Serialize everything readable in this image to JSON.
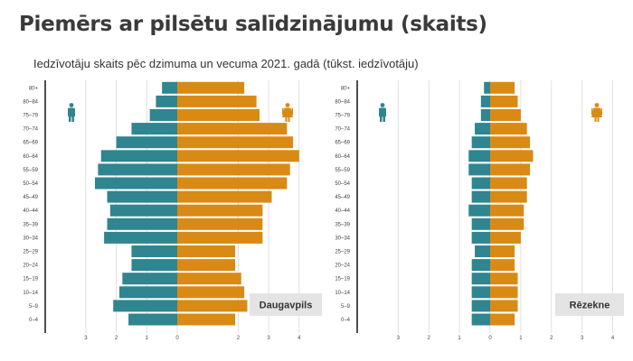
{
  "title": "Piemērs ar pilsētu salīdzinājumu (skaits)",
  "subtitle": "Iedzīvotāju skaits pēc dzimuma un vecuma 2021. gadā (tūkst. iedzīvotāju)",
  "colors": {
    "male": "#2f8590",
    "female": "#d98a14",
    "grid": "#d9d9d9",
    "axis": "#222222",
    "label_box": "#e4e4e4"
  },
  "icons": {
    "male": "male-person-icon",
    "female": "female-person-icon"
  },
  "chart_data": [
    {
      "type": "bar",
      "title": "Daugavpils",
      "orientation": "horizontal-pyramid",
      "categories": [
        "0–4",
        "5–9",
        "10–14",
        "15–19",
        "20–24",
        "25–29",
        "30–34",
        "35–39",
        "40–44",
        "45–49",
        "50–54",
        "55–59",
        "60–64",
        "65–69",
        "70–74",
        "75–79",
        "80–84",
        "80+"
      ],
      "series": [
        {
          "values": [
            1.6,
            2.1,
            1.9,
            1.8,
            1.5,
            1.5,
            2.4,
            2.3,
            2.2,
            2.3,
            2.7,
            2.6,
            2.5,
            2.0,
            1.5,
            0.9,
            0.7,
            0.5
          ]
        },
        {
          "values": [
            1.9,
            2.3,
            2.2,
            2.1,
            1.9,
            1.9,
            2.8,
            2.8,
            2.8,
            3.1,
            3.6,
            3.7,
            4.0,
            3.8,
            3.6,
            2.7,
            2.6,
            2.2
          ]
        }
      ],
      "xticks": [
        "3",
        "2",
        "1",
        "0",
        "2",
        "3",
        "4"
      ],
      "xlim": [
        -4,
        4
      ],
      "grid": true
    },
    {
      "type": "bar",
      "title": "Rēzekne",
      "orientation": "horizontal-pyramid",
      "categories": [
        "0–4",
        "5–9",
        "10–14",
        "15–19",
        "20–24",
        "25–29",
        "30–34",
        "35–39",
        "40–44",
        "45–49",
        "50–54",
        "55–59",
        "60–64",
        "65–69",
        "70–74",
        "75–79",
        "80–84",
        "80+"
      ],
      "series": [
        {
          "values": [
            0.6,
            0.6,
            0.6,
            0.6,
            0.6,
            0.5,
            0.6,
            0.6,
            0.7,
            0.6,
            0.6,
            0.7,
            0.7,
            0.6,
            0.5,
            0.3,
            0.3,
            0.2
          ]
        },
        {
          "values": [
            0.8,
            0.9,
            0.9,
            0.9,
            0.8,
            0.8,
            1.0,
            1.1,
            1.1,
            1.2,
            1.2,
            1.3,
            1.4,
            1.3,
            1.2,
            1.0,
            0.9,
            0.8
          ]
        }
      ],
      "xticks": [
        "3",
        "2",
        "1",
        "0",
        "1",
        "2",
        "3",
        "4"
      ],
      "xlim": [
        -4,
        4
      ],
      "grid": true
    }
  ]
}
